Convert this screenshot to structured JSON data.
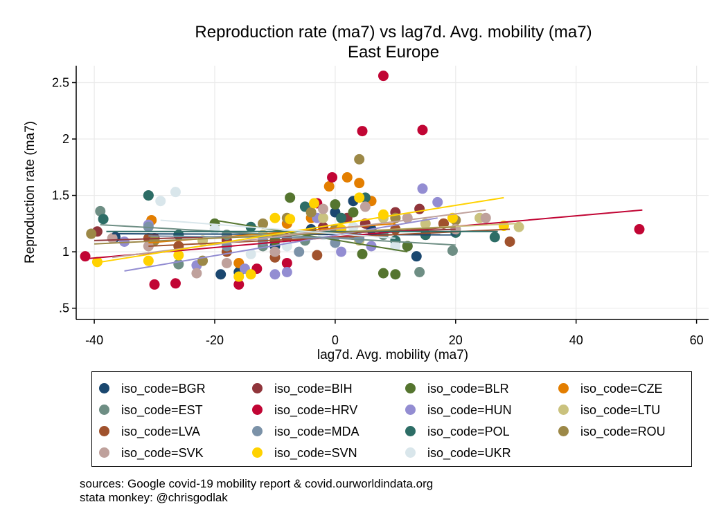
{
  "title": "Reproduction rate (ma7) vs lag7d. Avg. mobility (ma7)",
  "subtitle": "East Europe",
  "colors": {
    "BGR": "#1a476f",
    "BIH": "#90353b",
    "BLR": "#55752f",
    "CZE": "#e37e00",
    "EST": "#6e8e84",
    "HRV": "#c10534",
    "HUN": "#938dd2",
    "LTU": "#cac27e",
    "LVA": "#a0522d",
    "MDA": "#7b92a8",
    "POL": "#2d6d66",
    "ROU": "#9c8847",
    "SVK": "#bfa19c",
    "SVN": "#ffd200",
    "UKR": "#d9e6eb"
  },
  "legend": [
    {
      "code": "BGR",
      "label": "iso_code=BGR"
    },
    {
      "code": "BIH",
      "label": "iso_code=BIH"
    },
    {
      "code": "BLR",
      "label": "iso_code=BLR"
    },
    {
      "code": "CZE",
      "label": "iso_code=CZE"
    },
    {
      "code": "EST",
      "label": "iso_code=EST"
    },
    {
      "code": "HRV",
      "label": "iso_code=HRV"
    },
    {
      "code": "HUN",
      "label": "iso_code=HUN"
    },
    {
      "code": "LTU",
      "label": "iso_code=LTU"
    },
    {
      "code": "LVA",
      "label": "iso_code=LVA"
    },
    {
      "code": "MDA",
      "label": "iso_code=MDA"
    },
    {
      "code": "POL",
      "label": "iso_code=POL"
    },
    {
      "code": "ROU",
      "label": "iso_code=ROU"
    },
    {
      "code": "SVK",
      "label": "iso_code=SVK"
    },
    {
      "code": "SVN",
      "label": "iso_code=SVN"
    },
    {
      "code": "UKR",
      "label": "iso_code=UKR"
    }
  ],
  "sources_line1": "sources: Google covid-19 mobility report & covid.ourworldindata.org",
  "sources_line2": "stata monkey: @chrisgodlak",
  "chart_data": {
    "type": "scatter",
    "title": "Reproduction rate (ma7) vs lag7d. Avg. mobility (ma7)",
    "subtitle": "East Europe",
    "xlabel": "lag7d. Avg. mobility (ma7)",
    "ylabel": "Reproduction rate (ma7)",
    "xlim": [
      -43,
      62
    ],
    "ylim": [
      0.4,
      2.65
    ],
    "xticks": [
      -40,
      -20,
      0,
      20,
      40,
      60
    ],
    "xtick_labels": [
      "-40",
      "-20",
      "0",
      "20",
      "40",
      "60"
    ],
    "yticks": [
      0.5,
      1,
      1.5,
      2,
      2.5
    ],
    "ytick_labels": [
      ".5",
      "1",
      "1.5",
      "2",
      "2.5"
    ],
    "grid": true,
    "legend_position": "bottom",
    "series": [
      {
        "name": "iso_code=BGR",
        "code": "BGR",
        "x": [
          -36.5,
          -19,
          -16,
          -10,
          -4,
          0,
          3,
          6,
          12,
          13.5,
          20
        ],
        "y": [
          1.13,
          0.8,
          0.82,
          1.05,
          1.2,
          1.35,
          1.45,
          1.2,
          1.05,
          0.96,
          1.2
        ],
        "fit": [
          [
            -37,
            1.16
          ],
          [
            20,
            1.15
          ]
        ]
      },
      {
        "name": "iso_code=BIH",
        "code": "BIH",
        "x": [
          -39.5,
          -30,
          -18,
          -8,
          -2,
          2,
          5,
          10,
          14,
          18
        ],
        "y": [
          1.18,
          1.12,
          1.1,
          1.12,
          1.22,
          1.3,
          1.25,
          1.35,
          1.38,
          1.25
        ],
        "fit": [
          [
            -40,
            1.1
          ],
          [
            20,
            1.2
          ]
        ]
      },
      {
        "name": "iso_code=BLR",
        "code": "BLR",
        "x": [
          -20,
          -10,
          -7.5,
          0,
          3,
          4.5,
          8,
          10,
          12,
          15
        ],
        "y": [
          1.25,
          1.1,
          1.48,
          1.42,
          1.35,
          0.98,
          0.81,
          0.8,
          1.05,
          1.15
        ],
        "fit": [
          [
            -20,
            1.28
          ],
          [
            12,
            1.0
          ]
        ]
      },
      {
        "name": "iso_code=CZE",
        "code": "CZE",
        "x": [
          -30.5,
          -16,
          -8,
          -4,
          -1,
          2,
          4,
          6,
          10
        ],
        "y": [
          1.28,
          0.9,
          1.25,
          1.3,
          1.58,
          1.66,
          1.61,
          1.45,
          1.3
        ],
        "fit": [
          [
            -31,
            1.08
          ],
          [
            10,
            1.25
          ]
        ]
      },
      {
        "name": "iso_code=EST",
        "code": "EST",
        "x": [
          -39,
          -31,
          -26,
          -18,
          -12,
          -5,
          0,
          8,
          14,
          19.5
        ],
        "y": [
          1.36,
          1.5,
          0.89,
          1.15,
          1.05,
          1.1,
          1.2,
          1.15,
          0.82,
          1.01
        ],
        "fit": [
          [
            -39,
            1.24
          ],
          [
            20,
            1.06
          ]
        ]
      },
      {
        "name": "iso_code=HRV",
        "code": "HRV",
        "x": [
          -41.5,
          -30,
          -26.5,
          -16,
          -13,
          -8,
          -3,
          -0.5,
          4.5,
          8,
          14.5,
          50.5
        ],
        "y": [
          0.96,
          0.71,
          0.72,
          0.71,
          0.85,
          0.9,
          1.43,
          1.66,
          2.07,
          2.56,
          2.08,
          1.2
        ],
        "fit": [
          [
            -41,
            0.94
          ],
          [
            51,
            1.37
          ]
        ]
      },
      {
        "name": "iso_code=HUN",
        "code": "HUN",
        "x": [
          -35,
          -31,
          -23,
          -15,
          -10,
          -8,
          -3,
          1,
          6,
          14.5,
          17
        ],
        "y": [
          1.09,
          1.24,
          0.88,
          0.85,
          0.8,
          0.82,
          1.3,
          1.0,
          1.05,
          1.56,
          1.44
        ],
        "fit": [
          [
            -35,
            0.83
          ],
          [
            17,
            1.3
          ]
        ]
      },
      {
        "name": "iso_code=LTU",
        "code": "LTU",
        "x": [
          -22,
          -12,
          -2,
          4,
          8,
          15,
          24,
          30.5
        ],
        "y": [
          1.1,
          1.15,
          1.3,
          1.1,
          1.3,
          1.25,
          1.3,
          1.22
        ],
        "fit": [
          [
            -22,
            1.12
          ],
          [
            30,
            1.25
          ]
        ]
      },
      {
        "name": "iso_code=LVA",
        "code": "LVA",
        "x": [
          -31,
          -26,
          -18,
          -10,
          -3,
          3,
          10,
          18,
          29
        ],
        "y": [
          1.12,
          1.05,
          1.0,
          0.95,
          0.97,
          1.15,
          1.2,
          1.25,
          1.09
        ],
        "fit": [
          [
            -31,
            1.05
          ],
          [
            29,
            1.2
          ]
        ]
      },
      {
        "name": "iso_code=MDA",
        "code": "MDA",
        "x": [
          -31,
          -26,
          -18,
          -12,
          -6,
          0,
          4
        ],
        "y": [
          1.22,
          1.15,
          1.05,
          1.1,
          1.0,
          1.08,
          1.12
        ],
        "fit": [
          [
            -31,
            1.14
          ],
          [
            4,
            1.12
          ]
        ]
      },
      {
        "name": "iso_code=POL",
        "code": "POL",
        "x": [
          -38.5,
          -31,
          -26,
          -14,
          -5,
          1,
          5,
          10,
          15,
          20,
          26.5
        ],
        "y": [
          1.29,
          1.5,
          1.15,
          1.22,
          1.4,
          1.3,
          1.48,
          1.1,
          1.15,
          1.17,
          1.13
        ],
        "fit": [
          [
            -38,
            1.18
          ],
          [
            27,
            1.18
          ]
        ]
      },
      {
        "name": "iso_code=ROU",
        "code": "ROU",
        "x": [
          -40.5,
          -30,
          -22,
          -12,
          -8,
          -4,
          0,
          4,
          10,
          20
        ],
        "y": [
          1.16,
          1.1,
          0.92,
          1.25,
          1.3,
          1.35,
          1.2,
          1.82,
          1.3,
          1.28
        ],
        "fit": [
          [
            -40,
            1.07
          ],
          [
            20,
            1.22
          ]
        ]
      },
      {
        "name": "iso_code=SVK",
        "code": "SVK",
        "x": [
          -37,
          -31,
          -23,
          -18,
          -10,
          -2,
          5,
          12,
          20,
          25
        ],
        "y": [
          1.12,
          1.05,
          0.81,
          0.9,
          1.0,
          1.38,
          1.4,
          1.3,
          1.2,
          1.3
        ],
        "fit": [
          [
            -37,
            0.95
          ],
          [
            25,
            1.37
          ]
        ]
      },
      {
        "name": "iso_code=SVN",
        "code": "SVN",
        "x": [
          -39.5,
          -31,
          -26,
          -16,
          -14,
          -10,
          -7.5,
          -3.5,
          1,
          4,
          8,
          19.5,
          28
        ],
        "y": [
          0.91,
          0.92,
          0.97,
          0.78,
          0.8,
          1.3,
          1.29,
          1.43,
          1.2,
          1.48,
          1.33,
          1.3,
          1.23
        ],
        "fit": [
          [
            -40,
            0.9
          ],
          [
            28,
            1.48
          ]
        ]
      },
      {
        "name": "iso_code=UKR",
        "code": "UKR",
        "x": [
          -29,
          -26.5,
          -20,
          -14,
          -8,
          -2,
          3,
          10
        ],
        "y": [
          1.45,
          1.53,
          1.2,
          0.98,
          1.05,
          1.15,
          1.22,
          1.05
        ],
        "fit": [
          [
            -29,
            1.28
          ],
          [
            10,
            1.12
          ]
        ]
      }
    ]
  }
}
